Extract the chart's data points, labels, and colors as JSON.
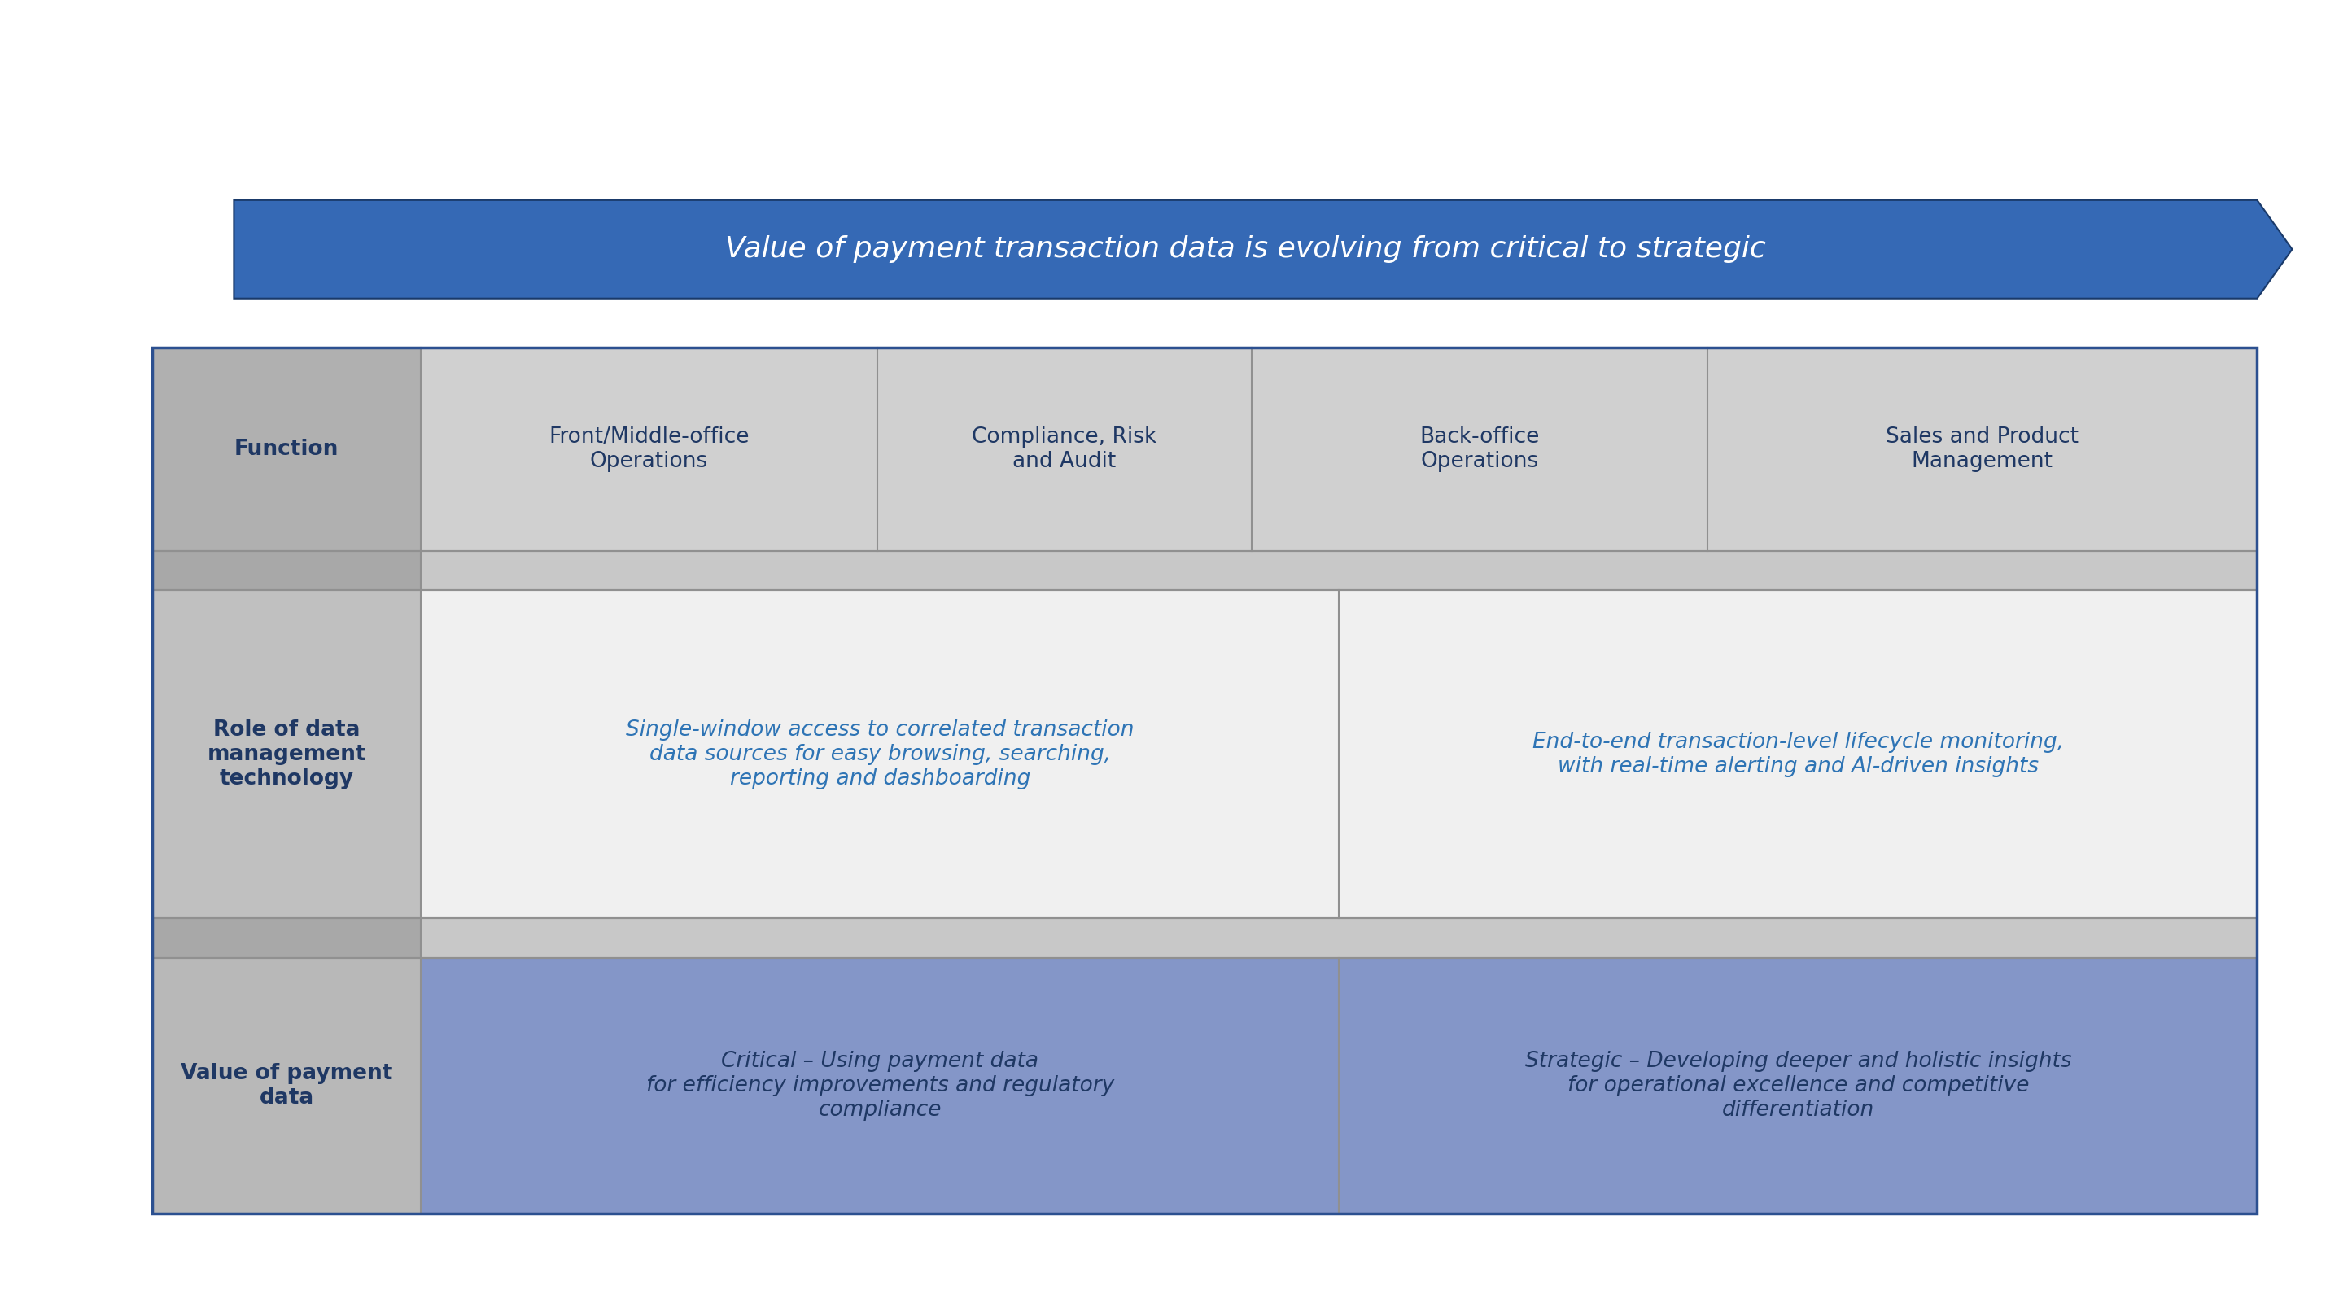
{
  "bg_color": "#ffffff",
  "arrow_color": "#3569b5",
  "arrow_border_color": "#1a3a6a",
  "arrow_text": "Value of payment transaction data is evolving from critical to strategic",
  "arrow_text_color": "#ffffff",
  "arrow_text_size": 26,
  "header_bg": "#d0d0d0",
  "header_col0_bg": "#b0b0b0",
  "header_text_color": "#1f3864",
  "header_text_size": 19,
  "separator_bg": "#c8c8c8",
  "separator_col0_bg": "#a8a8a8",
  "body_bg": "#f0f0f0",
  "body_col0_bg": "#c0c0c0",
  "value_bg": "#8496c8",
  "value_col0_bg": "#b8b8b8",
  "role_text_color": "#2e74b5",
  "role_text_size": 19,
  "value_text_color": "#1f3864",
  "value_text_size": 19,
  "header_col0": "Function",
  "header_col1": "Front/Middle-office\nOperations",
  "header_col2": "Compliance, Risk\nand Audit",
  "header_col3": "Back-office\nOperations",
  "header_col4": "Sales and Product\nManagement",
  "row_label_role": "Role of data\nmanagement\ntechnology",
  "row_label_value": "Value of payment\ndata",
  "role_text_left": "Single-window access to correlated transaction\ndata sources for easy browsing, searching,\nreporting and dashboarding",
  "role_text_right": "End-to-end transaction-level lifecycle monitoring,\nwith real-time alerting and AI-driven insights",
  "value_text_left_bold": "Critical",
  "value_text_left_rest": " – Using payment data\nfor efficiency improvements and regulatory\ncompliance",
  "value_text_right_bold": "Strategic",
  "value_text_right_rest": " – Developing deeper and holistic insights\nfor operational excellence and competitive\ndifferentiation",
  "divider_color": "#909090",
  "divider_lw": 1.5,
  "border_color": "#2c5090",
  "border_lw": 2.5
}
